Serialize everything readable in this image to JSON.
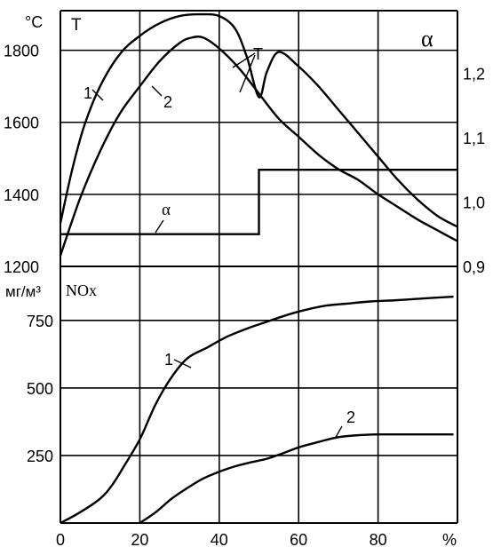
{
  "chart_data": [
    {
      "type": "line",
      "panel": "top",
      "left_axis": {
        "unit_label": "°C",
        "quantity_label": "T",
        "ticks": [
          1200,
          1400,
          1600,
          1800
        ],
        "range": [
          1200,
          1910
        ]
      },
      "right_axis": {
        "quantity_label": "α",
        "ticks": [
          "0,9",
          "1,0",
          "1,1",
          "1,2"
        ],
        "tick_values": [
          0.9,
          1.0,
          1.1,
          1.2
        ],
        "range": [
          0.9,
          1.297
        ]
      },
      "x_axis": {
        "ticks": [
          0,
          20,
          40,
          60,
          80
        ],
        "unit": "%",
        "range": [
          0,
          100
        ]
      },
      "grid": true,
      "series": [
        {
          "name": "1",
          "axis": "left",
          "points": [
            [
              0,
              1320
            ],
            [
              3,
              1470
            ],
            [
              6,
              1590
            ],
            [
              10,
              1700
            ],
            [
              15,
              1790
            ],
            [
              20,
              1840
            ],
            [
              25,
              1875
            ],
            [
              30,
              1895
            ],
            [
              35,
              1900
            ],
            [
              40,
              1895
            ],
            [
              44,
              1860
            ],
            [
              47,
              1780
            ],
            [
              50,
              1670
            ],
            [
              52,
              1740
            ],
            [
              55,
              1795
            ],
            [
              60,
              1755
            ],
            [
              65,
              1700
            ],
            [
              70,
              1635
            ],
            [
              75,
              1570
            ],
            [
              80,
              1505
            ],
            [
              85,
              1440
            ],
            [
              90,
              1385
            ],
            [
              95,
              1340
            ],
            [
              100,
              1310
            ]
          ]
        },
        {
          "name": "2",
          "axis": "left",
          "points": [
            [
              0,
              1230
            ],
            [
              5,
              1390
            ],
            [
              10,
              1520
            ],
            [
              15,
              1625
            ],
            [
              20,
              1700
            ],
            [
              25,
              1770
            ],
            [
              30,
              1820
            ],
            [
              33,
              1835
            ],
            [
              36,
              1835
            ],
            [
              40,
              1805
            ],
            [
              45,
              1750
            ],
            [
              50,
              1680
            ],
            [
              55,
              1610
            ],
            [
              60,
              1560
            ],
            [
              65,
              1510
            ],
            [
              70,
              1470
            ],
            [
              75,
              1440
            ],
            [
              80,
              1400
            ],
            [
              85,
              1365
            ],
            [
              90,
              1330
            ],
            [
              95,
              1300
            ],
            [
              100,
              1270
            ]
          ]
        },
        {
          "name": "α",
          "axis": "right",
          "step": true,
          "points": [
            [
              0,
              0.95
            ],
            [
              50,
              0.95
            ],
            [
              50,
              1.05
            ],
            [
              100,
              1.05
            ]
          ]
        }
      ],
      "annotations": [
        "T",
        "1",
        "2",
        "α"
      ]
    },
    {
      "type": "line",
      "panel": "bottom",
      "y_axis": {
        "unit_label": "мг/м³",
        "quantity_label": "NOx",
        "ticks": [
          250,
          500,
          750
        ],
        "range": [
          0,
          950
        ]
      },
      "x_axis": {
        "ticks": [
          0,
          20,
          40,
          60,
          80
        ],
        "unit": "%",
        "range": [
          0,
          100
        ]
      },
      "grid": true,
      "series": [
        {
          "name": "1",
          "points": [
            [
              0,
              0
            ],
            [
              5,
              40
            ],
            [
              10,
              90
            ],
            [
              13,
              140
            ],
            [
              16,
              210
            ],
            [
              20,
              310
            ],
            [
              24,
              440
            ],
            [
              28,
              540
            ],
            [
              32,
              610
            ],
            [
              37,
              650
            ],
            [
              42,
              690
            ],
            [
              47,
              720
            ],
            [
              52,
              745
            ],
            [
              57,
              770
            ],
            [
              62,
              790
            ],
            [
              67,
              805
            ],
            [
              72,
              812
            ],
            [
              78,
              820
            ],
            [
              85,
              825
            ],
            [
              92,
              832
            ],
            [
              99,
              838
            ]
          ]
        },
        {
          "name": "2",
          "points": [
            [
              20,
              0
            ],
            [
              24,
              40
            ],
            [
              28,
              90
            ],
            [
              32,
              130
            ],
            [
              36,
              165
            ],
            [
              40,
              190
            ],
            [
              44,
              210
            ],
            [
              48,
              225
            ],
            [
              52,
              238
            ],
            [
              56,
              258
            ],
            [
              60,
              280
            ],
            [
              65,
              300
            ],
            [
              70,
              318
            ],
            [
              75,
              325
            ],
            [
              80,
              328
            ],
            [
              88,
              328
            ],
            [
              99,
              328
            ]
          ]
        }
      ],
      "annotations": [
        "1",
        "2"
      ]
    }
  ]
}
